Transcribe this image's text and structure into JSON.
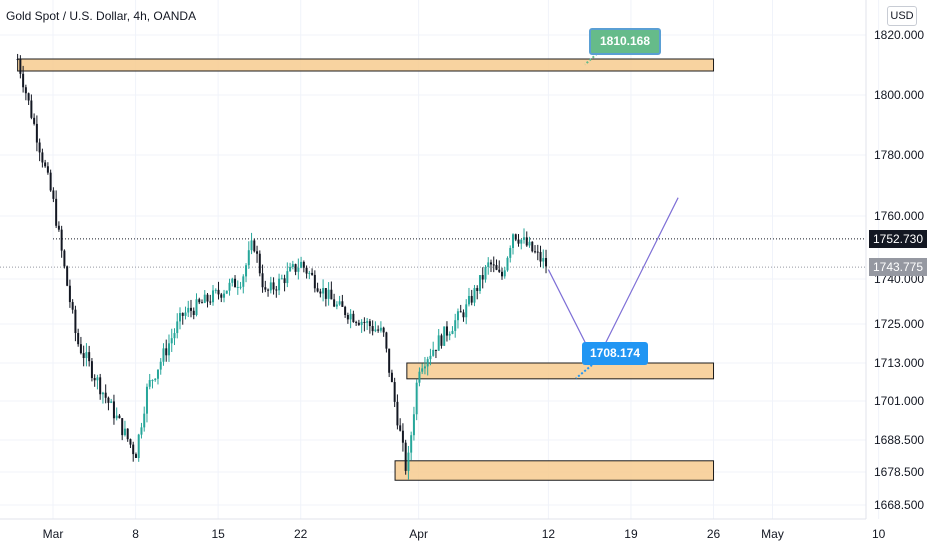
{
  "header": {
    "title": "Gold Spot / U.S. Dollar, 4h, OANDA",
    "currency": "USD"
  },
  "price_tags": {
    "last": "1752.730",
    "current": "1743.775"
  },
  "colors": {
    "bull": "#26a69a",
    "bear": "#131722",
    "zone_fill": "#f7cb8f",
    "zone_border": "#1b1b1b",
    "projection": "#7e6fd6",
    "callout_green": "#66bb8a",
    "callout_blue": "#2196f3",
    "last_tag": "#131722",
    "current_tag": "#9598a1"
  },
  "chart_data": {
    "type": "candlestick",
    "title": "Gold Spot / U.S. Dollar, 4h, OANDA",
    "xlabel": "",
    "ylabel": "",
    "y_ticks": [
      "1820.000",
      "1800.000",
      "1780.000",
      "1760.000",
      "1740.000",
      "1725.000",
      "1713.000",
      "1701.000",
      "1688.500",
      "1678.500",
      "1668.500"
    ],
    "x_ticks": [
      "Mar",
      "8",
      "15",
      "22",
      "Apr",
      "12",
      "19",
      "26",
      "May",
      "10"
    ],
    "ylim": [
      1664,
      1830
    ],
    "grid": true,
    "anchors": [
      {
        "date": "2021-02-26",
        "close": 1812
      },
      {
        "date": "2021-03-01",
        "close": 1765
      },
      {
        "date": "2021-03-03",
        "close": 1720
      },
      {
        "date": "2021-03-08",
        "close": 1684
      },
      {
        "date": "2021-03-09",
        "close": 1705
      },
      {
        "date": "2021-03-12",
        "close": 1728
      },
      {
        "date": "2021-03-17",
        "close": 1740
      },
      {
        "date": "2021-03-18",
        "close": 1752
      },
      {
        "date": "2021-03-19",
        "close": 1735
      },
      {
        "date": "2021-03-22",
        "close": 1745
      },
      {
        "date": "2021-03-25",
        "close": 1731
      },
      {
        "date": "2021-03-29",
        "close": 1722
      },
      {
        "date": "2021-03-31",
        "close": 1678
      },
      {
        "date": "2021-04-01",
        "close": 1712
      },
      {
        "date": "2021-04-05",
        "close": 1730
      },
      {
        "date": "2021-04-07",
        "close": 1745
      },
      {
        "date": "2021-04-08",
        "close": 1740
      },
      {
        "date": "2021-04-09",
        "close": 1755
      },
      {
        "date": "2021-04-12",
        "close": 1743.775
      }
    ],
    "zones": [
      {
        "from": "2021-02-26",
        "to": "2021-04-26",
        "low": 1808,
        "high": 1812
      },
      {
        "from": "2021-03-31",
        "to": "2021-04-26",
        "low": 1708,
        "high": 1713
      },
      {
        "from": "2021-03-30",
        "to": "2021-04-26",
        "low": 1676,
        "high": 1682
      }
    ],
    "projection": [
      {
        "date": "2021-04-12",
        "price": 1743
      },
      {
        "date": "2021-04-16",
        "price": 1713
      },
      {
        "date": "2021-04-23",
        "price": 1766
      }
    ],
    "levels": {
      "last": 1752.73,
      "current": 1743.775
    },
    "callouts": [
      {
        "label": "1810.168",
        "price": 1810.168
      },
      {
        "label": "1708.174",
        "price": 1708.174
      }
    ]
  }
}
